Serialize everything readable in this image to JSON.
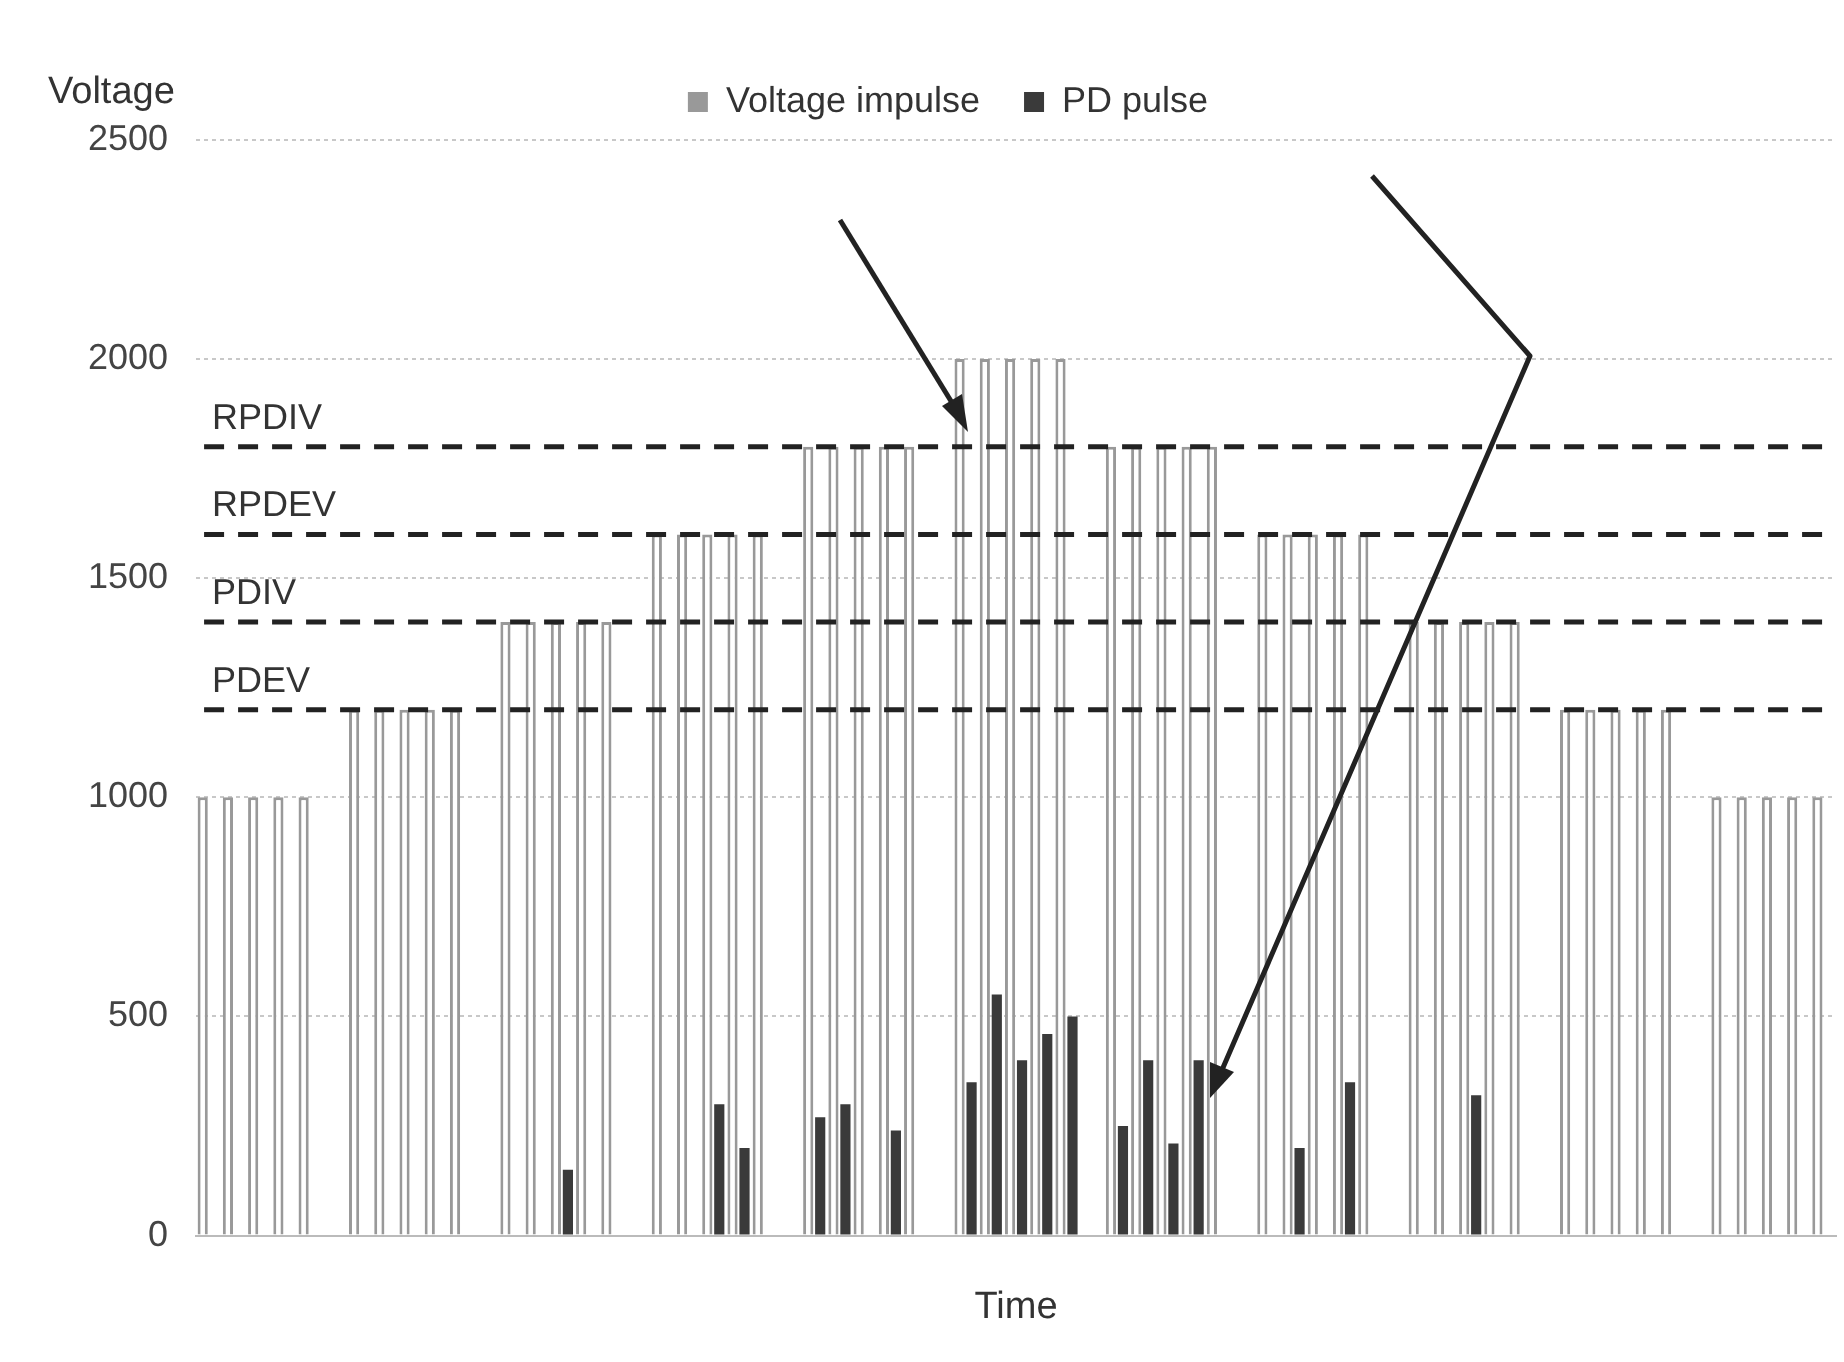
{
  "chart_data": {
    "type": "bar",
    "xlabel": "Time",
    "ylabel": "Voltage",
    "categories": [
      null,
      null,
      null,
      null,
      null,
      null,
      null,
      null,
      null,
      null,
      null,
      null,
      null,
      null,
      null,
      null,
      null,
      null,
      null,
      null,
      null,
      null,
      null,
      null,
      null,
      null,
      null,
      null,
      null,
      null,
      null,
      null,
      null,
      null,
      null,
      null,
      null,
      null,
      null,
      null,
      null,
      null,
      null,
      null,
      null,
      null,
      null,
      null,
      null,
      null,
      null,
      null,
      null,
      null,
      null,
      null,
      null,
      null,
      null,
      null,
      null,
      null,
      null,
      null,
      null
    ],
    "series": [
      {
        "name": "Voltage impulse",
        "color": "#999999",
        "values": [
          1000,
          1000,
          1000,
          1000,
          1000,
          null,
          1200,
          1200,
          1200,
          1200,
          1200,
          null,
          1400,
          1400,
          1400,
          1400,
          1400,
          null,
          1600,
          1600,
          1600,
          1600,
          1600,
          null,
          1800,
          1800,
          1800,
          1800,
          1800,
          null,
          2000,
          2000,
          2000,
          2000,
          2000,
          null,
          1800,
          1800,
          1800,
          1800,
          1800,
          null,
          1600,
          1600,
          1600,
          1600,
          1600,
          null,
          1400,
          1400,
          1400,
          1400,
          1400,
          null,
          1200,
          1200,
          1200,
          1200,
          1200,
          null,
          1000,
          1000,
          1000,
          1000,
          1000
        ]
      },
      {
        "name": "PD pulse",
        "color": "#3a3a3a",
        "values": [
          null,
          null,
          null,
          null,
          null,
          null,
          null,
          null,
          null,
          null,
          null,
          null,
          null,
          null,
          150,
          null,
          null,
          null,
          null,
          null,
          300,
          200,
          null,
          null,
          270,
          300,
          null,
          240,
          null,
          null,
          350,
          550,
          400,
          460,
          500,
          null,
          250,
          400,
          210,
          400,
          null,
          null,
          null,
          200,
          null,
          350,
          null,
          null,
          null,
          null,
          320,
          null,
          null,
          null,
          null,
          null,
          null,
          null,
          null,
          null,
          null,
          null,
          null,
          null,
          null
        ]
      }
    ],
    "ylim": [
      0,
      2500
    ],
    "yticks": [
      0,
      500,
      1000,
      1500,
      2000,
      2500
    ],
    "grid": "y",
    "legend": "top",
    "ref_lines": [
      {
        "axis": "y",
        "value": 1800,
        "label": "RPDIV",
        "line_style": "dashed",
        "color": "#222222"
      },
      {
        "axis": "y",
        "value": 1600,
        "label": "RPDEV",
        "line_style": "dashed",
        "color": "#222222"
      },
      {
        "axis": "y",
        "value": 1400,
        "label": "PDIV",
        "line_style": "dashed",
        "color": "#222222"
      },
      {
        "axis": "y",
        "value": 1200,
        "label": "PDEV",
        "line_style": "dashed",
        "color": "#222222"
      }
    ]
  }
}
